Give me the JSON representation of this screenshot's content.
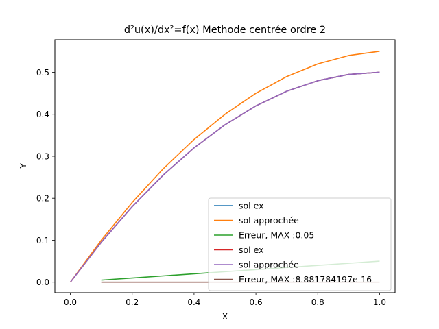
{
  "chart_data": {
    "type": "line",
    "title": "d²u(x)/dx²=f(x) Methode centrée ordre 2",
    "xlabel": "X",
    "ylabel": "Y",
    "xlim": [
      -0.05,
      1.05
    ],
    "ylim": [
      -0.025,
      0.5775
    ],
    "xticks": [
      0.0,
      0.2,
      0.4,
      0.6,
      0.8,
      1.0
    ],
    "xtick_labels": [
      "0.0",
      "0.2",
      "0.4",
      "0.6",
      "0.8",
      "1.0"
    ],
    "yticks": [
      0.0,
      0.1,
      0.2,
      0.3,
      0.4,
      0.5
    ],
    "ytick_labels": [
      "0.0",
      "0.1",
      "0.2",
      "0.3",
      "0.4",
      "0.5"
    ],
    "grid": false,
    "legend_position": "lower-right",
    "series": [
      {
        "name": "sol ex",
        "color": "#1f77b4",
        "x": [
          0.0,
          0.1,
          0.2,
          0.3,
          0.4,
          0.5,
          0.6,
          0.7,
          0.8,
          0.9,
          1.0
        ],
        "y": [
          0.0,
          0.095,
          0.18,
          0.255,
          0.32,
          0.375,
          0.42,
          0.455,
          0.48,
          0.495,
          0.5
        ]
      },
      {
        "name": "sol approchée",
        "color": "#ff7f0e",
        "x": [
          0.0,
          0.1,
          0.2,
          0.3,
          0.4,
          0.5,
          0.6,
          0.7,
          0.8,
          0.9,
          1.0
        ],
        "y": [
          0.0,
          0.1,
          0.19,
          0.27,
          0.34,
          0.4,
          0.45,
          0.49,
          0.52,
          0.54,
          0.55
        ]
      },
      {
        "name": "Erreur, MAX :0.05",
        "color": "#2ca02c",
        "x": [
          0.1,
          0.2,
          0.3,
          0.4,
          0.5,
          0.6,
          0.7,
          0.8,
          0.9,
          1.0
        ],
        "y": [
          0.005,
          0.01,
          0.015,
          0.02,
          0.025,
          0.03,
          0.035,
          0.04,
          0.045,
          0.05
        ]
      },
      {
        "name": "sol ex",
        "color": "#d62728",
        "x": [
          0.0,
          0.1,
          0.2,
          0.3,
          0.4,
          0.5,
          0.6,
          0.7,
          0.8,
          0.9,
          1.0
        ],
        "y": [
          0.0,
          0.095,
          0.18,
          0.255,
          0.32,
          0.375,
          0.42,
          0.455,
          0.48,
          0.495,
          0.5
        ]
      },
      {
        "name": "sol approchée",
        "color": "#9467bd",
        "x": [
          0.0,
          0.1,
          0.2,
          0.3,
          0.4,
          0.5,
          0.6,
          0.7,
          0.8,
          0.9,
          1.0
        ],
        "y": [
          0.0,
          0.095,
          0.18,
          0.255,
          0.32,
          0.375,
          0.42,
          0.455,
          0.48,
          0.495,
          0.5
        ]
      },
      {
        "name": "Erreur, MAX :8.881784197e-16",
        "color": "#8c564b",
        "x": [
          0.1,
          0.2,
          0.3,
          0.4,
          0.5,
          0.6,
          0.7,
          0.8,
          0.9,
          1.0
        ],
        "y": [
          0.0,
          0.0,
          0.0,
          0.0,
          0.0,
          0.0,
          0.0,
          0.0,
          0.0,
          0.0
        ]
      }
    ]
  }
}
